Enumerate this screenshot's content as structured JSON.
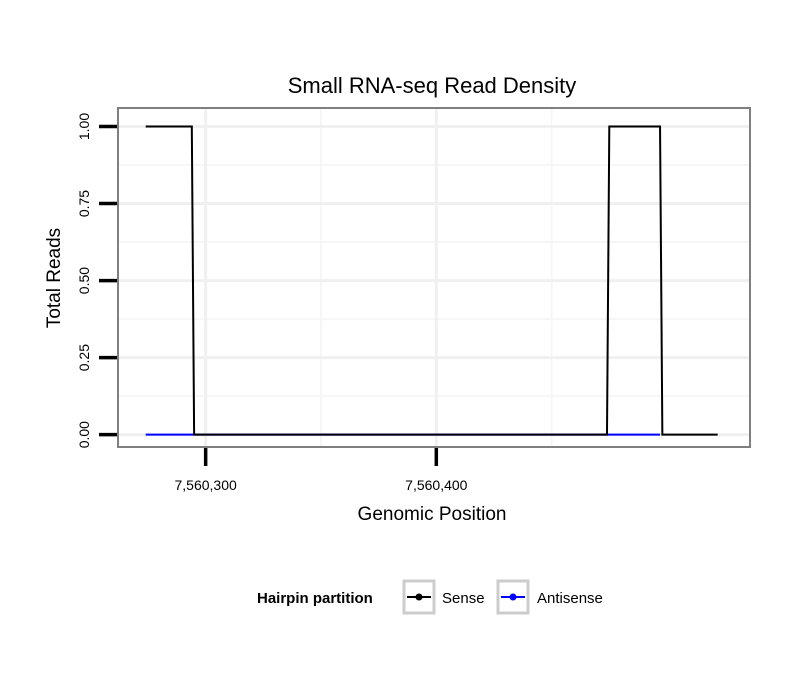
{
  "chart_data": {
    "type": "line",
    "title": "Small RNA-seq Read Density",
    "xlabel": "Genomic Position",
    "ylabel": "Total Reads",
    "xlim": [
      7560262,
      7560536
    ],
    "ylim": [
      -0.04,
      1.06
    ],
    "x_ticks": [
      {
        "value": 7560300,
        "label": "7,560,300"
      },
      {
        "value": 7560400,
        "label": "7,560,400"
      }
    ],
    "y_ticks": [
      {
        "value": 0.0,
        "label": "0.00"
      },
      {
        "value": 0.25,
        "label": "0.25"
      },
      {
        "value": 0.5,
        "label": "0.50"
      },
      {
        "value": 0.75,
        "label": "0.75"
      },
      {
        "value": 1.0,
        "label": "1.00"
      }
    ],
    "grid": true,
    "series": [
      {
        "name": "Sense",
        "color": "#000000",
        "x": [
          7560274,
          7560294,
          7560295,
          7560474,
          7560475,
          7560497,
          7560498,
          7560522
        ],
        "y": [
          1,
          1,
          0,
          0,
          1,
          1,
          0,
          0
        ]
      },
      {
        "name": "Antisense",
        "color": "#0000ff",
        "x": [
          7560274,
          7560294,
          7560474,
          7560497
        ],
        "y": [
          0,
          0,
          0,
          0
        ]
      }
    ],
    "legend": {
      "title": "Hairpin partition",
      "position": "bottom",
      "entries": [
        "Sense",
        "Antisense"
      ]
    }
  }
}
